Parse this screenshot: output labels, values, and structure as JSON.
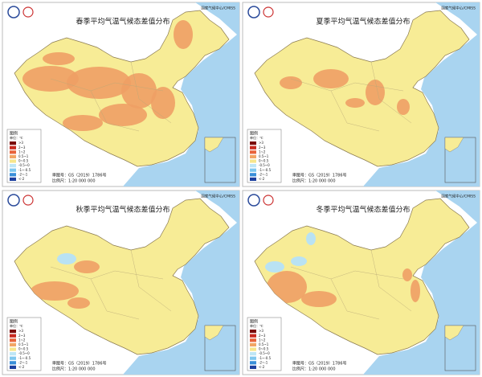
{
  "panels": [
    {
      "title": "春季平均气温气候态差值分布",
      "source": "国家气候中心/CMISS",
      "legend": {
        "title": "图例",
        "unit": "单位：℃",
        "items": [
          {
            "label": ">3",
            "color": "#7a0b0b"
          },
          {
            "label": "2~3",
            "color": "#c8281e"
          },
          {
            "label": "1~2",
            "color": "#e8643c"
          },
          {
            "label": "0.5~1",
            "color": "#f2a564"
          },
          {
            "label": "0~0.5",
            "color": "#f7e68c"
          },
          {
            "label": "-0.5~0",
            "color": "#bfe6f5"
          },
          {
            "label": "-1~-0.5",
            "color": "#7fc8ee"
          },
          {
            "label": "-2~-1",
            "color": "#3a8fd9"
          },
          {
            "label": "<-2",
            "color": "#1c3f9e"
          }
        ]
      },
      "approval": "审图号：GS（2019）1786号",
      "scale": "比例尺：1:20 000 000"
    },
    {
      "title": "夏季平均气温气候态差值分布",
      "source": "国家气候中心/CMISS",
      "legend": {
        "title": "图例",
        "unit": "单位：℃",
        "items": [
          {
            "label": ">3",
            "color": "#7a0b0b"
          },
          {
            "label": "2~3",
            "color": "#c8281e"
          },
          {
            "label": "1~2",
            "color": "#e8643c"
          },
          {
            "label": "0.5~1",
            "color": "#f2a564"
          },
          {
            "label": "0~0.5",
            "color": "#f7e68c"
          },
          {
            "label": "-0.5~0",
            "color": "#bfe6f5"
          },
          {
            "label": "-1~-0.5",
            "color": "#7fc8ee"
          },
          {
            "label": "-2~-1",
            "color": "#3a8fd9"
          },
          {
            "label": "<-2",
            "color": "#1c3f9e"
          }
        ]
      },
      "approval": "审图号：GS（2019）1786号",
      "scale": "比例尺：1:20 000 000"
    },
    {
      "title": "秋季平均气温气候态差值分布",
      "source": "国家气候中心/CMISS",
      "legend": {
        "title": "图例",
        "unit": "单位：℃",
        "items": [
          {
            "label": ">3",
            "color": "#7a0b0b"
          },
          {
            "label": "2~3",
            "color": "#c8281e"
          },
          {
            "label": "1~2",
            "color": "#e8643c"
          },
          {
            "label": "0.5~1",
            "color": "#f2a564"
          },
          {
            "label": "0~0.5",
            "color": "#f7e68c"
          },
          {
            "label": "-0.5~0",
            "color": "#bfe6f5"
          },
          {
            "label": "-1~-0.5",
            "color": "#7fc8ee"
          },
          {
            "label": "-2~-1",
            "color": "#3a8fd9"
          },
          {
            "label": "<-2",
            "color": "#1c3f9e"
          }
        ]
      },
      "approval": "审图号：GS（2019）1786号",
      "scale": "比例尺：1:20 000 000"
    },
    {
      "title": "冬季平均气温气候态差值分布",
      "source": "国家气候中心/CMISS",
      "legend": {
        "title": "图例",
        "unit": "单位：℃",
        "items": [
          {
            "label": ">3",
            "color": "#7a0b0b"
          },
          {
            "label": "2~3",
            "color": "#c8281e"
          },
          {
            "label": "1~2",
            "color": "#e8643c"
          },
          {
            "label": "0.5~1",
            "color": "#f2a564"
          },
          {
            "label": "0~0.5",
            "color": "#f7e68c"
          },
          {
            "label": "-0.5~0",
            "color": "#bfe6f5"
          },
          {
            "label": "-1~-0.5",
            "color": "#7fc8ee"
          },
          {
            "label": "-2~-1",
            "color": "#3a8fd9"
          },
          {
            "label": "<-2",
            "color": "#1c3f9e"
          }
        ]
      },
      "approval": "审图号：GS（2019）1786号",
      "scale": "比例尺：1:20 000 000"
    }
  ]
}
